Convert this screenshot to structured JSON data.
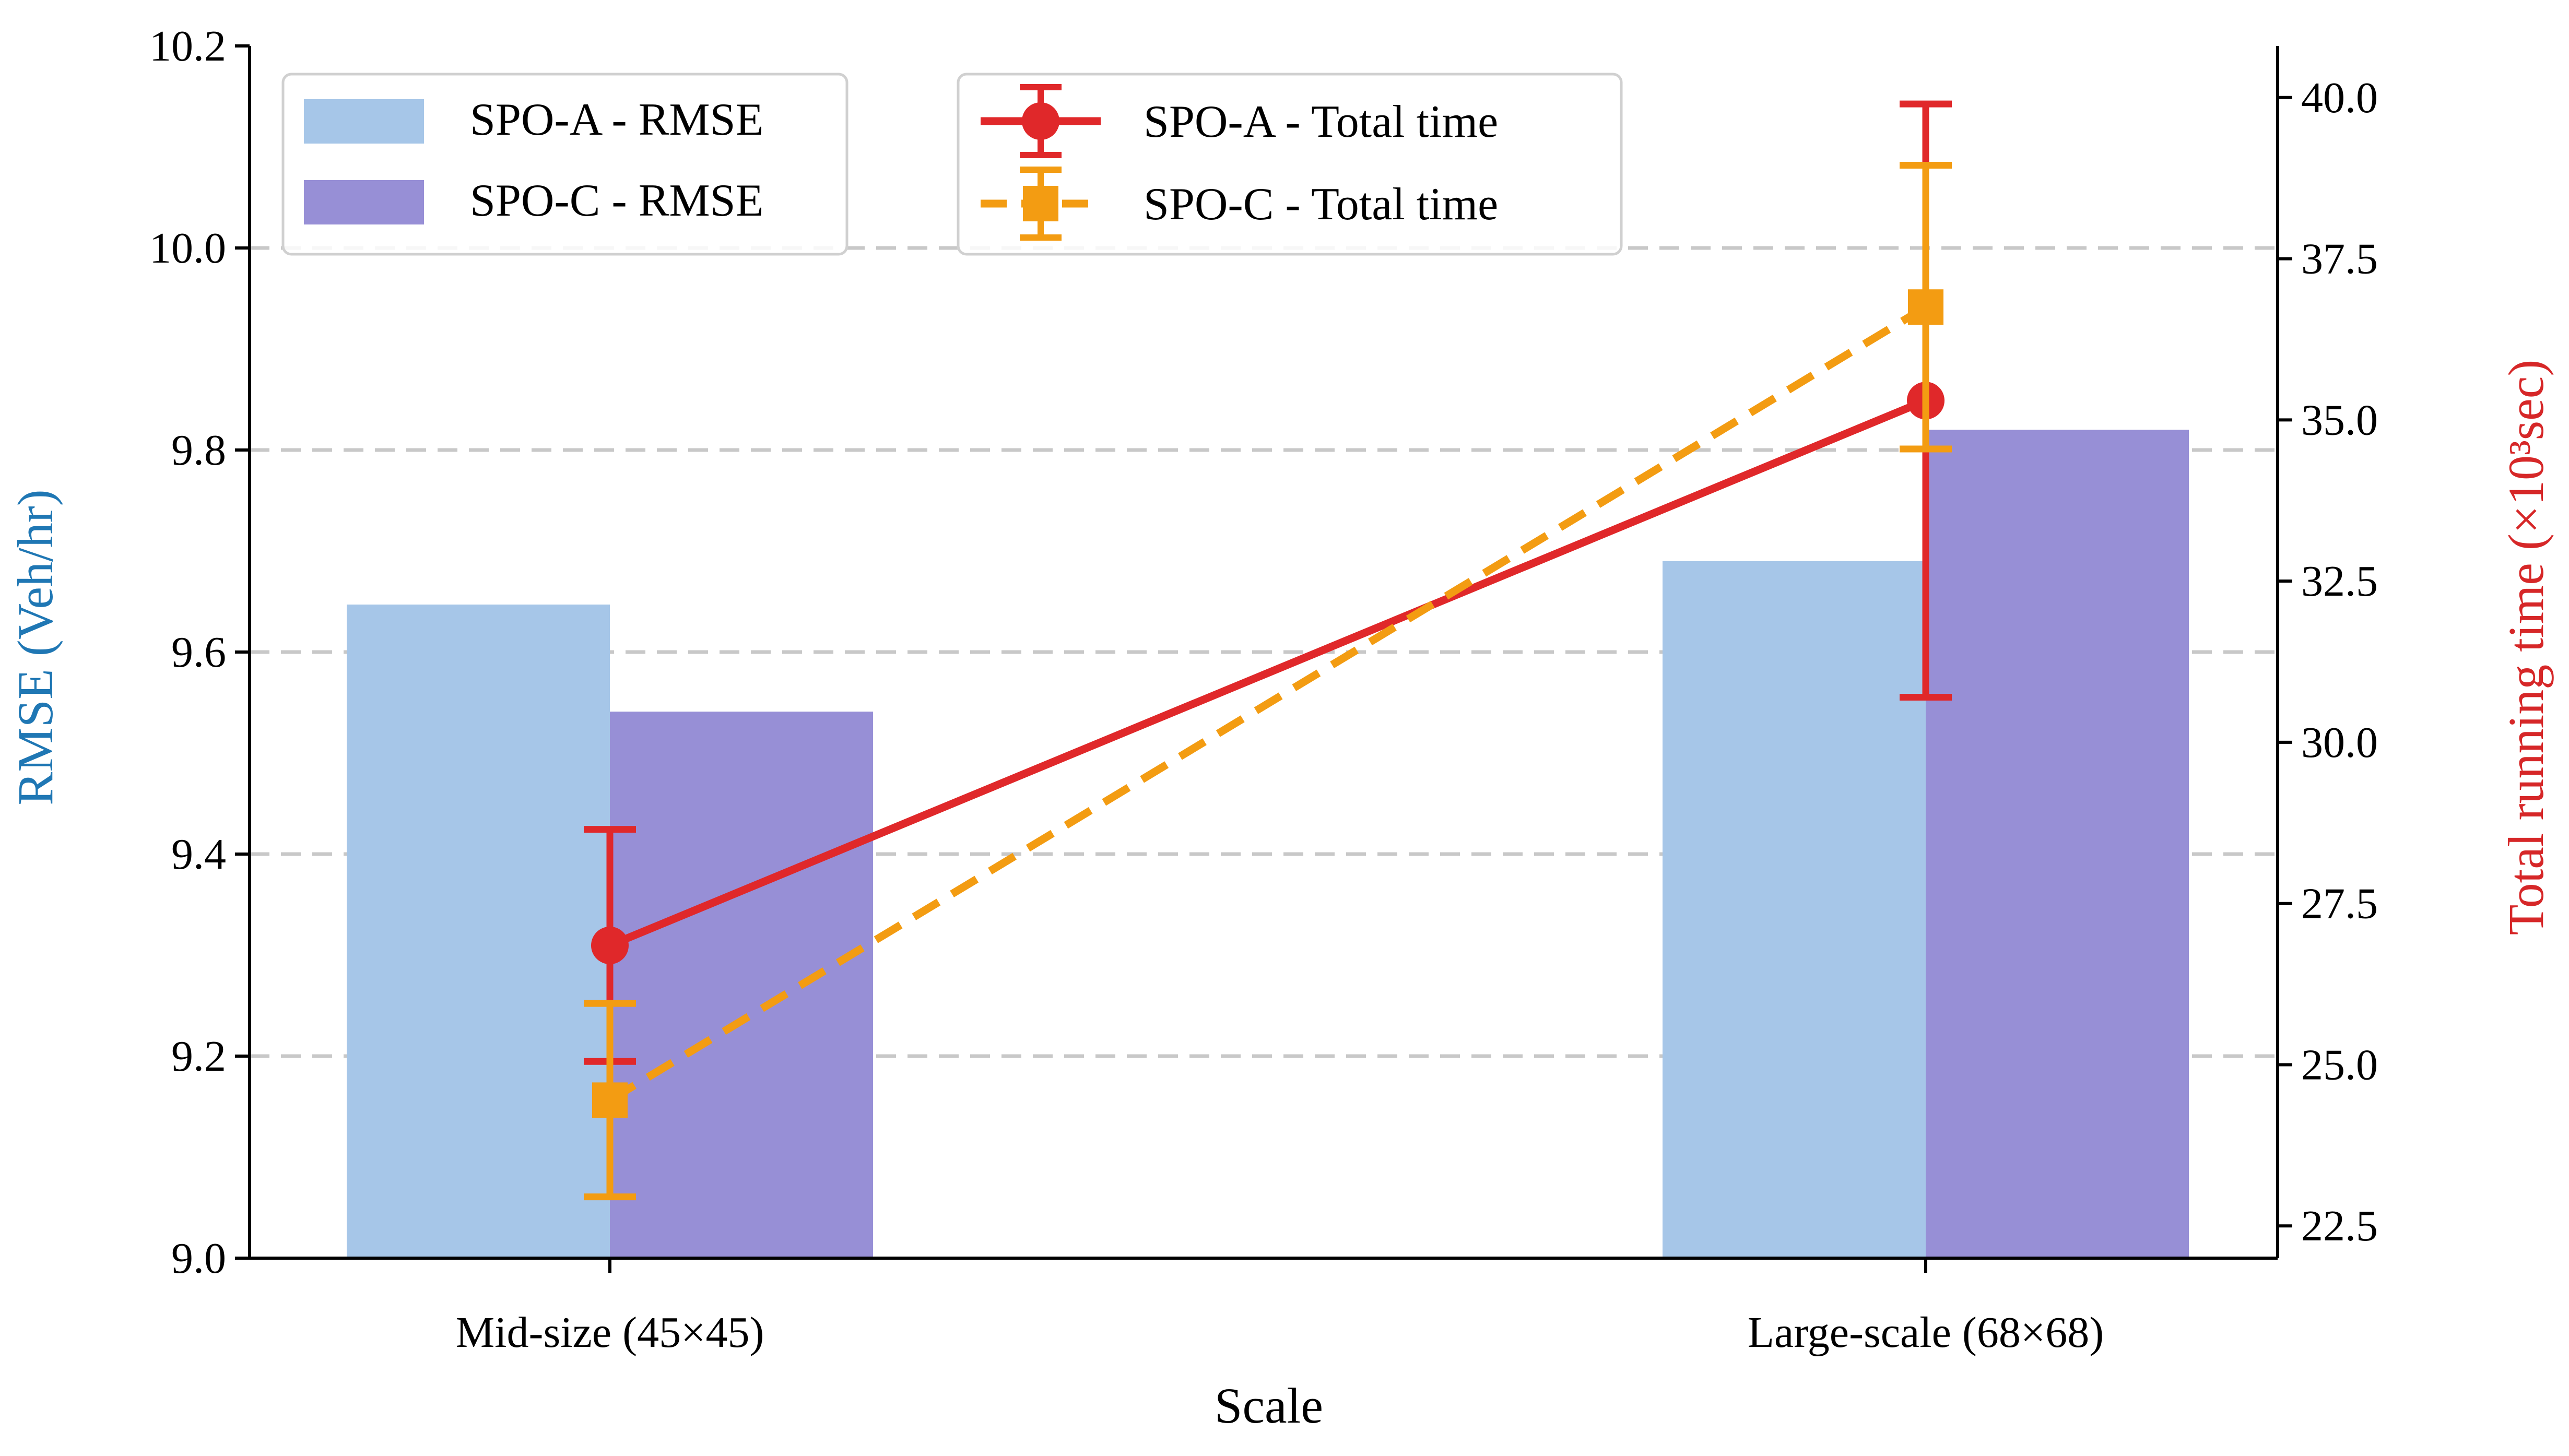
{
  "chart_data": {
    "type": "bar",
    "xlabel": "Scale",
    "categories": [
      "Mid-size (45×45)",
      "Large-scale (68×68)"
    ],
    "left_axis": {
      "label": "RMSE (Veh/hr)",
      "ylim": [
        9.0,
        10.2
      ],
      "ticks": [
        "9.0",
        "9.2",
        "9.4",
        "9.6",
        "9.8",
        "10.0",
        "10.2"
      ],
      "color": "#1f77b4"
    },
    "right_axis": {
      "label": "Total running time (×10³sec)",
      "ylim": [
        22.0,
        40.8
      ],
      "ticks": [
        "22.5",
        "25.0",
        "27.5",
        "30.0",
        "32.5",
        "35.0",
        "37.5",
        "40.0"
      ],
      "color": "#d62728"
    },
    "grid": "horizontal dashed",
    "legend_left": "top-left",
    "legend_right": "top-center",
    "bar_series": [
      {
        "name": "SPO-A - RMSE",
        "values": [
          9.647,
          9.69
        ],
        "color": "#a6c6e8"
      },
      {
        "name": "SPO-C - RMSE",
        "values": [
          9.541,
          9.82
        ],
        "color": "#978fd6"
      }
    ],
    "line_series": [
      {
        "name": "SPO-A - Total time",
        "values": [
          26.85,
          35.3
        ],
        "errors": [
          1.8,
          4.6
        ],
        "marker": "circle",
        "linestyle": "solid",
        "color": "#e0282a"
      },
      {
        "name": "SPO-C - Total time",
        "values": [
          24.45,
          36.75
        ],
        "errors": [
          1.5,
          2.2
        ],
        "marker": "square",
        "linestyle": "dashed",
        "color": "#f39c12"
      }
    ]
  }
}
